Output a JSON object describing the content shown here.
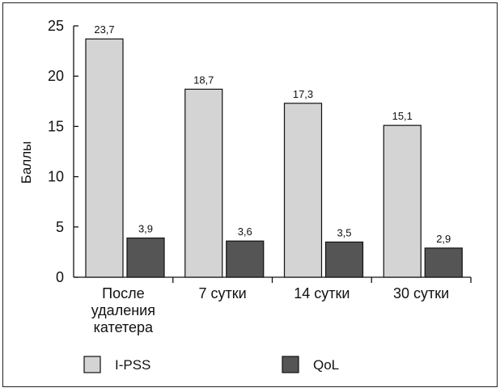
{
  "chart_data": {
    "type": "bar",
    "ylabel": "Баллы",
    "xlabel": "",
    "ylim": [
      0,
      25
    ],
    "yticks": [
      0,
      5,
      10,
      15,
      20,
      25
    ],
    "categories": [
      [
        "После",
        "удаления",
        "катетера"
      ],
      [
        "7 сутки"
      ],
      [
        "14 сутки"
      ],
      [
        "30 сутки"
      ]
    ],
    "series": [
      {
        "name": "I-PSS",
        "color": "#d4d4d4",
        "values": [
          23.7,
          18.7,
          17.3,
          15.1
        ],
        "labels": [
          "23,7",
          "18,7",
          "17,3",
          "15,1"
        ]
      },
      {
        "name": "QoL",
        "color": "#555555",
        "values": [
          3.9,
          3.6,
          3.5,
          2.9
        ],
        "labels": [
          "3,9",
          "3,6",
          "3,5",
          "2,9"
        ]
      }
    ],
    "grid": false,
    "legend_position": "bottom-left"
  }
}
